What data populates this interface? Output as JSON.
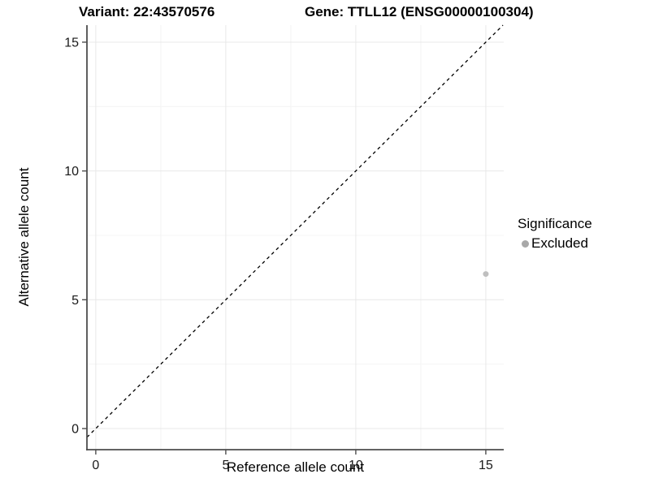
{
  "chart_data": {
    "type": "scatter",
    "title_left": "Variant: 22:43570576",
    "title_right": "Gene: TTLL12 (ENSG00000100304)",
    "xlabel": "Reference allele count",
    "ylabel": "Alternative allele count",
    "xlim": [
      -0.34,
      15.69
    ],
    "ylim": [
      -0.82,
      15.66
    ],
    "x_ticks": [
      0,
      5,
      10,
      15
    ],
    "y_ticks": [
      0,
      5,
      10,
      15
    ],
    "x_minor_ticks": [
      2.5,
      7.5,
      12.5
    ],
    "y_minor_ticks": [
      2.5,
      7.5,
      12.5
    ],
    "grid": "major and minor gridlines, light gray on white",
    "identity_line": {
      "equation": "y = x",
      "style": "dashed",
      "color": "#000000"
    },
    "series": [
      {
        "name": "Excluded",
        "marker": "circle",
        "color": "#bfbfbf",
        "points": [
          [
            15,
            6
          ]
        ]
      }
    ],
    "legend": {
      "title": "Significance",
      "position": "right",
      "entries": [
        {
          "label": "Excluded",
          "color": "#a8a8a8"
        }
      ]
    }
  },
  "colors": {
    "background": "#ffffff",
    "grid_major": "#e8e8e8",
    "grid_minor": "#f4f4f4",
    "axis_line": "#4d4d4d",
    "tick_label": "#1a1a1a",
    "title_text": "#000000"
  }
}
